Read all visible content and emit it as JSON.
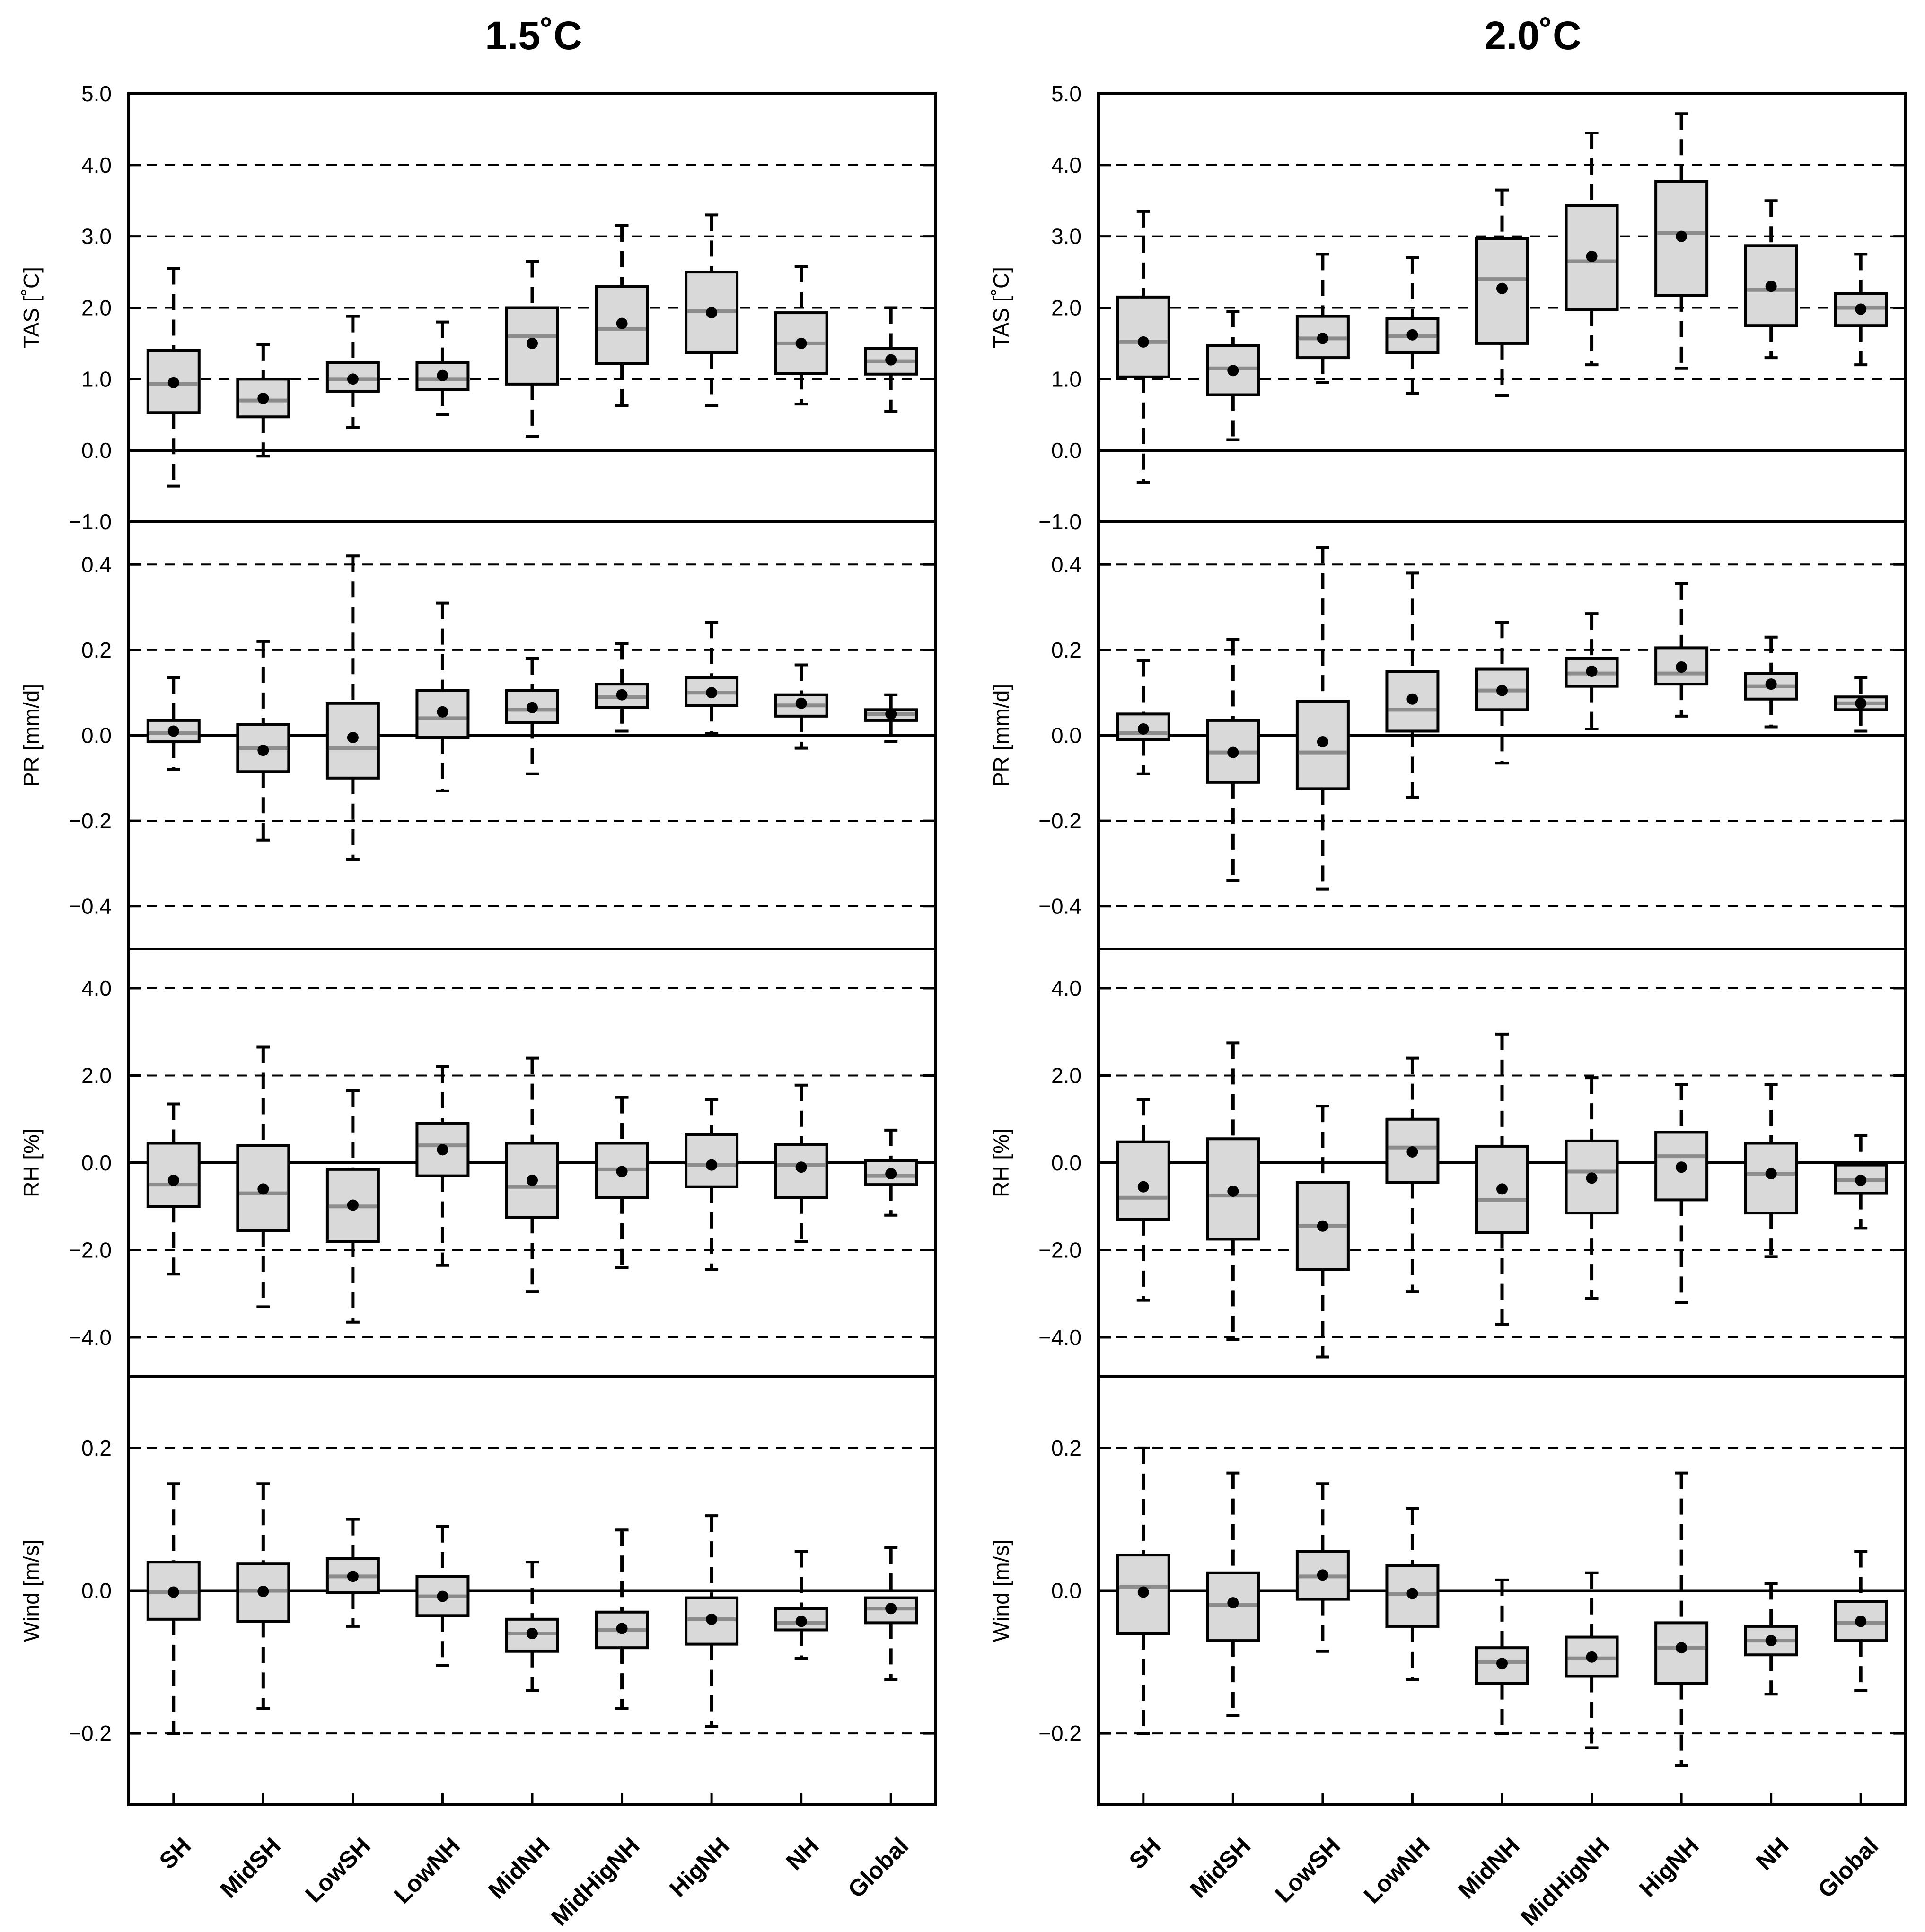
{
  "chart_data": {
    "type": "box",
    "columns": [
      {
        "title": "1.5˚C"
      },
      {
        "title": "2.0˚C"
      }
    ],
    "categories": [
      "SH",
      "MidSH",
      "LowSH",
      "LowNH",
      "MidNH",
      "MidHigNH",
      "HigNH",
      "NH",
      "Global"
    ],
    "rows": [
      {
        "ylabel": "TAS [˚C]",
        "ylim": [
          -1.0,
          5.0
        ],
        "ticks": [
          -1.0,
          0.0,
          1.0,
          2.0,
          3.0,
          4.0,
          5.0
        ],
        "tick_labels": [
          "−1.0",
          "0.0",
          "1.0",
          "2.0",
          "3.0",
          "4.0",
          "5.0"
        ],
        "dashed_grid": [
          1.0,
          2.0,
          3.0,
          4.0
        ],
        "zero_line": 0.0,
        "panels": [
          {
            "boxes": [
              {
                "min": -0.5,
                "q1": 0.53,
                "median": 0.93,
                "q3": 1.4,
                "max": 2.55,
                "mean": 0.95
              },
              {
                "min": -0.08,
                "q1": 0.47,
                "median": 0.7,
                "q3": 1.0,
                "max": 1.48,
                "mean": 0.73
              },
              {
                "min": 0.32,
                "q1": 0.83,
                "median": 1.0,
                "q3": 1.23,
                "max": 1.88,
                "mean": 1.0
              },
              {
                "min": 0.5,
                "q1": 0.85,
                "median": 1.0,
                "q3": 1.23,
                "max": 1.8,
                "mean": 1.05
              },
              {
                "min": 0.2,
                "q1": 0.93,
                "median": 1.6,
                "q3": 2.0,
                "max": 2.65,
                "mean": 1.5
              },
              {
                "min": 0.63,
                "q1": 1.22,
                "median": 1.7,
                "q3": 2.3,
                "max": 3.15,
                "mean": 1.78
              },
              {
                "min": 0.63,
                "q1": 1.37,
                "median": 1.95,
                "q3": 2.5,
                "max": 3.3,
                "mean": 1.93
              },
              {
                "min": 0.65,
                "q1": 1.08,
                "median": 1.5,
                "q3": 1.93,
                "max": 2.58,
                "mean": 1.5
              },
              {
                "min": 0.55,
                "q1": 1.07,
                "median": 1.25,
                "q3": 1.43,
                "max": 2.0,
                "mean": 1.27
              }
            ]
          },
          {
            "boxes": [
              {
                "min": -0.45,
                "q1": 1.03,
                "median": 1.52,
                "q3": 2.15,
                "max": 3.35,
                "mean": 1.52
              },
              {
                "min": 0.15,
                "q1": 0.78,
                "median": 1.15,
                "q3": 1.47,
                "max": 1.95,
                "mean": 1.12
              },
              {
                "min": 0.95,
                "q1": 1.3,
                "median": 1.57,
                "q3": 1.88,
                "max": 2.75,
                "mean": 1.57
              },
              {
                "min": 0.8,
                "q1": 1.37,
                "median": 1.6,
                "q3": 1.85,
                "max": 2.7,
                "mean": 1.62
              },
              {
                "min": 0.77,
                "q1": 1.5,
                "median": 2.4,
                "q3": 2.97,
                "max": 3.65,
                "mean": 2.27
              },
              {
                "min": 1.2,
                "q1": 1.97,
                "median": 2.65,
                "q3": 3.43,
                "max": 4.45,
                "mean": 2.72
              },
              {
                "min": 1.15,
                "q1": 2.17,
                "median": 3.05,
                "q3": 3.77,
                "max": 4.72,
                "mean": 3.0
              },
              {
                "min": 1.3,
                "q1": 1.75,
                "median": 2.25,
                "q3": 2.87,
                "max": 3.5,
                "mean": 2.3
              },
              {
                "min": 1.2,
                "q1": 1.75,
                "median": 2.0,
                "q3": 2.2,
                "max": 2.75,
                "mean": 1.98
              }
            ]
          }
        ]
      },
      {
        "ylabel": "PR [mm/d]",
        "ylim": [
          -0.5,
          0.5
        ],
        "ticks": [
          -0.4,
          -0.2,
          0.0,
          0.2,
          0.4
        ],
        "tick_labels": [
          "−0.4",
          "−0.2",
          "0.0",
          "0.2",
          "0.4"
        ],
        "dashed_grid": [
          -0.4,
          -0.2,
          0.2,
          0.4
        ],
        "zero_line": 0.0,
        "panels": [
          {
            "boxes": [
              {
                "min": -0.08,
                "q1": -0.015,
                "median": 0.005,
                "q3": 0.035,
                "max": 0.135,
                "mean": 0.01
              },
              {
                "min": -0.245,
                "q1": -0.085,
                "median": -0.03,
                "q3": 0.025,
                "max": 0.22,
                "mean": -0.035
              },
              {
                "min": -0.29,
                "q1": -0.1,
                "median": -0.03,
                "q3": 0.075,
                "max": 0.42,
                "mean": -0.005
              },
              {
                "min": -0.13,
                "q1": -0.005,
                "median": 0.04,
                "q3": 0.105,
                "max": 0.31,
                "mean": 0.055
              },
              {
                "min": -0.09,
                "q1": 0.03,
                "median": 0.06,
                "q3": 0.105,
                "max": 0.18,
                "mean": 0.065
              },
              {
                "min": 0.01,
                "q1": 0.065,
                "median": 0.09,
                "q3": 0.12,
                "max": 0.215,
                "mean": 0.095
              },
              {
                "min": 0.005,
                "q1": 0.07,
                "median": 0.1,
                "q3": 0.135,
                "max": 0.265,
                "mean": 0.1
              },
              {
                "min": -0.03,
                "q1": 0.045,
                "median": 0.07,
                "q3": 0.095,
                "max": 0.165,
                "mean": 0.075
              },
              {
                "min": -0.015,
                "q1": 0.035,
                "median": 0.05,
                "q3": 0.06,
                "max": 0.095,
                "mean": 0.05
              }
            ]
          },
          {
            "boxes": [
              {
                "min": -0.09,
                "q1": -0.01,
                "median": 0.005,
                "q3": 0.05,
                "max": 0.175,
                "mean": 0.015
              },
              {
                "min": -0.34,
                "q1": -0.11,
                "median": -0.04,
                "q3": 0.035,
                "max": 0.225,
                "mean": -0.04
              },
              {
                "min": -0.36,
                "q1": -0.125,
                "median": -0.04,
                "q3": 0.08,
                "max": 0.44,
                "mean": -0.015
              },
              {
                "min": -0.145,
                "q1": 0.01,
                "median": 0.06,
                "q3": 0.15,
                "max": 0.38,
                "mean": 0.085
              },
              {
                "min": -0.065,
                "q1": 0.06,
                "median": 0.105,
                "q3": 0.155,
                "max": 0.265,
                "mean": 0.105
              },
              {
                "min": 0.015,
                "q1": 0.115,
                "median": 0.145,
                "q3": 0.18,
                "max": 0.285,
                "mean": 0.15
              },
              {
                "min": 0.045,
                "q1": 0.12,
                "median": 0.145,
                "q3": 0.205,
                "max": 0.355,
                "mean": 0.16
              },
              {
                "min": 0.02,
                "q1": 0.085,
                "median": 0.115,
                "q3": 0.145,
                "max": 0.23,
                "mean": 0.12
              },
              {
                "min": 0.01,
                "q1": 0.06,
                "median": 0.075,
                "q3": 0.09,
                "max": 0.135,
                "mean": 0.075
              }
            ]
          }
        ]
      },
      {
        "ylabel": "RH [%]",
        "ylim": [
          -4.9,
          4.9
        ],
        "ticks": [
          -4.0,
          -2.0,
          0.0,
          2.0,
          4.0
        ],
        "tick_labels": [
          "−4.0",
          "−2.0",
          "0.0",
          "2.0",
          "4.0"
        ],
        "dashed_grid": [
          -4.0,
          -2.0,
          2.0,
          4.0
        ],
        "zero_line": 0.0,
        "panels": [
          {
            "boxes": [
              {
                "min": -2.55,
                "q1": -1.0,
                "median": -0.5,
                "q3": 0.45,
                "max": 1.35,
                "mean": -0.4
              },
              {
                "min": -3.3,
                "q1": -1.55,
                "median": -0.7,
                "q3": 0.4,
                "max": 2.65,
                "mean": -0.6
              },
              {
                "min": -3.65,
                "q1": -1.8,
                "median": -1.0,
                "q3": -0.15,
                "max": 1.65,
                "mean": -0.97
              },
              {
                "min": -2.35,
                "q1": -0.3,
                "median": 0.4,
                "q3": 0.9,
                "max": 2.2,
                "mean": 0.3
              },
              {
                "min": -2.95,
                "q1": -1.25,
                "median": -0.55,
                "q3": 0.45,
                "max": 2.4,
                "mean": -0.4
              },
              {
                "min": -2.4,
                "q1": -0.8,
                "median": -0.15,
                "q3": 0.45,
                "max": 1.5,
                "mean": -0.2
              },
              {
                "min": -2.45,
                "q1": -0.55,
                "median": -0.05,
                "q3": 0.65,
                "max": 1.45,
                "mean": -0.05
              },
              {
                "min": -1.8,
                "q1": -0.8,
                "median": -0.05,
                "q3": 0.42,
                "max": 1.78,
                "mean": -0.1
              },
              {
                "min": -1.2,
                "q1": -0.5,
                "median": -0.3,
                "q3": 0.05,
                "max": 0.75,
                "mean": -0.25
              }
            ]
          },
          {
            "boxes": [
              {
                "min": -3.15,
                "q1": -1.3,
                "median": -0.8,
                "q3": 0.48,
                "max": 1.45,
                "mean": -0.55
              },
              {
                "min": -4.05,
                "q1": -1.75,
                "median": -0.75,
                "q3": 0.55,
                "max": 2.75,
                "mean": -0.65
              },
              {
                "min": -4.45,
                "q1": -2.45,
                "median": -1.45,
                "q3": -0.45,
                "max": 1.3,
                "mean": -1.45
              },
              {
                "min": -2.95,
                "q1": -0.45,
                "median": 0.35,
                "q3": 1.0,
                "max": 2.4,
                "mean": 0.25
              },
              {
                "min": -3.7,
                "q1": -1.6,
                "median": -0.85,
                "q3": 0.38,
                "max": 2.95,
                "mean": -0.6
              },
              {
                "min": -3.1,
                "q1": -1.15,
                "median": -0.2,
                "q3": 0.5,
                "max": 1.95,
                "mean": -0.35
              },
              {
                "min": -3.2,
                "q1": -0.85,
                "median": 0.15,
                "q3": 0.7,
                "max": 1.8,
                "mean": -0.1
              },
              {
                "min": -2.15,
                "q1": -1.15,
                "median": -0.25,
                "q3": 0.45,
                "max": 1.8,
                "mean": -0.25
              },
              {
                "min": -1.5,
                "q1": -0.7,
                "median": -0.4,
                "q3": -0.05,
                "max": 0.62,
                "mean": -0.4
              }
            ]
          }
        ]
      },
      {
        "ylabel": "Wind [m/s]",
        "ylim": [
          -0.3,
          0.3
        ],
        "ticks": [
          -0.2,
          0.0,
          0.2
        ],
        "tick_labels": [
          "−0.2",
          "0.0",
          "0.2"
        ],
        "dashed_grid": [
          -0.2,
          0.2
        ],
        "zero_line": 0.0,
        "panels": [
          {
            "boxes": [
              {
                "min": -0.2,
                "q1": -0.04,
                "median": -0.002,
                "q3": 0.04,
                "max": 0.15,
                "mean": -0.002
              },
              {
                "min": -0.165,
                "q1": -0.043,
                "median": 0.0,
                "q3": 0.038,
                "max": 0.15,
                "mean": -0.001
              },
              {
                "min": -0.05,
                "q1": -0.003,
                "median": 0.02,
                "q3": 0.045,
                "max": 0.1,
                "mean": 0.02
              },
              {
                "min": -0.105,
                "q1": -0.035,
                "median": -0.008,
                "q3": 0.02,
                "max": 0.09,
                "mean": -0.008
              },
              {
                "min": -0.14,
                "q1": -0.085,
                "median": -0.06,
                "q3": -0.04,
                "max": 0.04,
                "mean": -0.06
              },
              {
                "min": -0.165,
                "q1": -0.08,
                "median": -0.055,
                "q3": -0.03,
                "max": 0.085,
                "mean": -0.053
              },
              {
                "min": -0.19,
                "q1": -0.075,
                "median": -0.04,
                "q3": -0.01,
                "max": 0.105,
                "mean": -0.04
              },
              {
                "min": -0.095,
                "q1": -0.055,
                "median": -0.045,
                "q3": -0.025,
                "max": 0.055,
                "mean": -0.043
              },
              {
                "min": -0.125,
                "q1": -0.045,
                "median": -0.025,
                "q3": -0.01,
                "max": 0.06,
                "mean": -0.025
              }
            ]
          },
          {
            "boxes": [
              {
                "min": -0.2,
                "q1": -0.06,
                "median": 0.005,
                "q3": 0.05,
                "max": 0.2,
                "mean": -0.002
              },
              {
                "min": -0.175,
                "q1": -0.07,
                "median": -0.02,
                "q3": 0.025,
                "max": 0.165,
                "mean": -0.017
              },
              {
                "min": -0.085,
                "q1": -0.012,
                "median": 0.02,
                "q3": 0.055,
                "max": 0.15,
                "mean": 0.022
              },
              {
                "min": -0.125,
                "q1": -0.05,
                "median": -0.005,
                "q3": 0.035,
                "max": 0.115,
                "mean": -0.004
              },
              {
                "min": -0.2,
                "q1": -0.13,
                "median": -0.1,
                "q3": -0.08,
                "max": 0.015,
                "mean": -0.102
              },
              {
                "min": -0.22,
                "q1": -0.12,
                "median": -0.095,
                "q3": -0.065,
                "max": 0.025,
                "mean": -0.093
              },
              {
                "min": -0.245,
                "q1": -0.13,
                "median": -0.08,
                "q3": -0.045,
                "max": 0.165,
                "mean": -0.08
              },
              {
                "min": -0.145,
                "q1": -0.09,
                "median": -0.07,
                "q3": -0.05,
                "max": 0.01,
                "mean": -0.07
              },
              {
                "min": -0.14,
                "q1": -0.07,
                "median": -0.045,
                "q3": -0.015,
                "max": 0.055,
                "mean": -0.043
              }
            ]
          }
        ]
      }
    ],
    "colors": {
      "box_fill": "#d9d9d9",
      "median": "#8c8c8c",
      "frame": "#000000"
    }
  }
}
